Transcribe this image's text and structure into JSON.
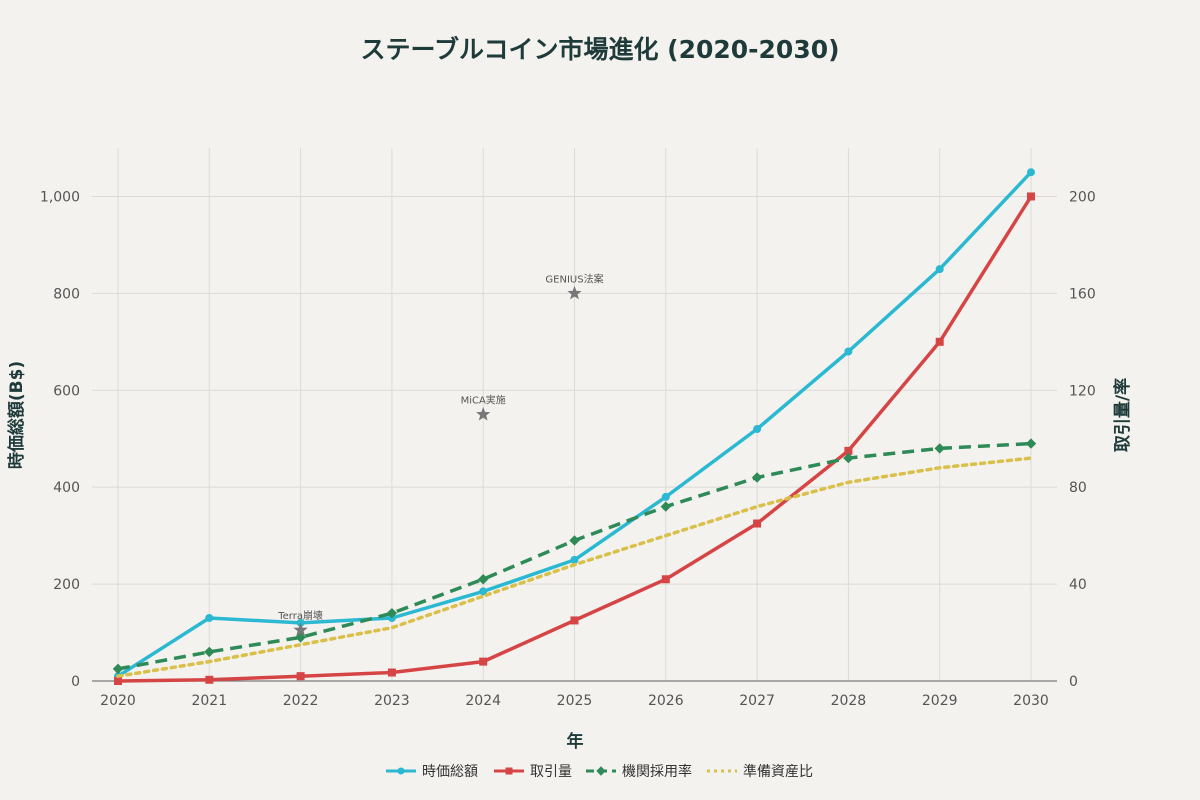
{
  "chart_data": {
    "type": "line",
    "title": "ステーブルコイン市場進化 (2020-2030)",
    "xlabel": "年",
    "ylabel_left": "時価総額(B$)",
    "ylabel_right": "取引量/率",
    "x": [
      "2020",
      "2021",
      "2022",
      "2023",
      "2024",
      "2025",
      "2026",
      "2027",
      "2028",
      "2029",
      "2030"
    ],
    "ylim_left": [
      0,
      1100
    ],
    "ylim_right": [
      0,
      220
    ],
    "yticks_left": [
      "0",
      "200",
      "400",
      "600",
      "800",
      "1,000"
    ],
    "yticks_right": [
      "0",
      "40",
      "80",
      "120",
      "160",
      "200"
    ],
    "grid": true,
    "legend_position": "bottom-center",
    "series": [
      {
        "name": "時価総額",
        "axis": "left",
        "color": "#2bb8d1",
        "dash": "solid",
        "marker": "circle",
        "values": [
          10,
          130,
          120,
          130,
          185,
          250,
          380,
          520,
          680,
          850,
          1050
        ]
      },
      {
        "name": "取引量",
        "axis": "right",
        "color": "#d64545",
        "dash": "solid",
        "marker": "square",
        "values": [
          0,
          0.5,
          2,
          3.5,
          8,
          25,
          42,
          65,
          95,
          140,
          200
        ]
      },
      {
        "name": "機関採用率",
        "axis": "right",
        "color": "#2e8b57",
        "dash": "dash",
        "marker": "diamond",
        "values": [
          5,
          12,
          18,
          28,
          42,
          58,
          72,
          84,
          92,
          96,
          98
        ]
      },
      {
        "name": "準備資産比",
        "axis": "right",
        "color": "#d9c04a",
        "dash": "dot",
        "marker": "none",
        "values": [
          2,
          8,
          15,
          22,
          35,
          48,
          60,
          72,
          82,
          88,
          92
        ]
      }
    ],
    "annotations": [
      {
        "label": "Terra崩壊",
        "x": "2022",
        "y": 105,
        "marker": "star",
        "color": "#777777"
      },
      {
        "label": "MiCA実施",
        "x": "2024",
        "y": 550,
        "marker": "star",
        "color": "#777777"
      },
      {
        "label": "GENIUS法案",
        "x": "2025",
        "y": 800,
        "marker": "star",
        "color": "#777777"
      }
    ]
  }
}
